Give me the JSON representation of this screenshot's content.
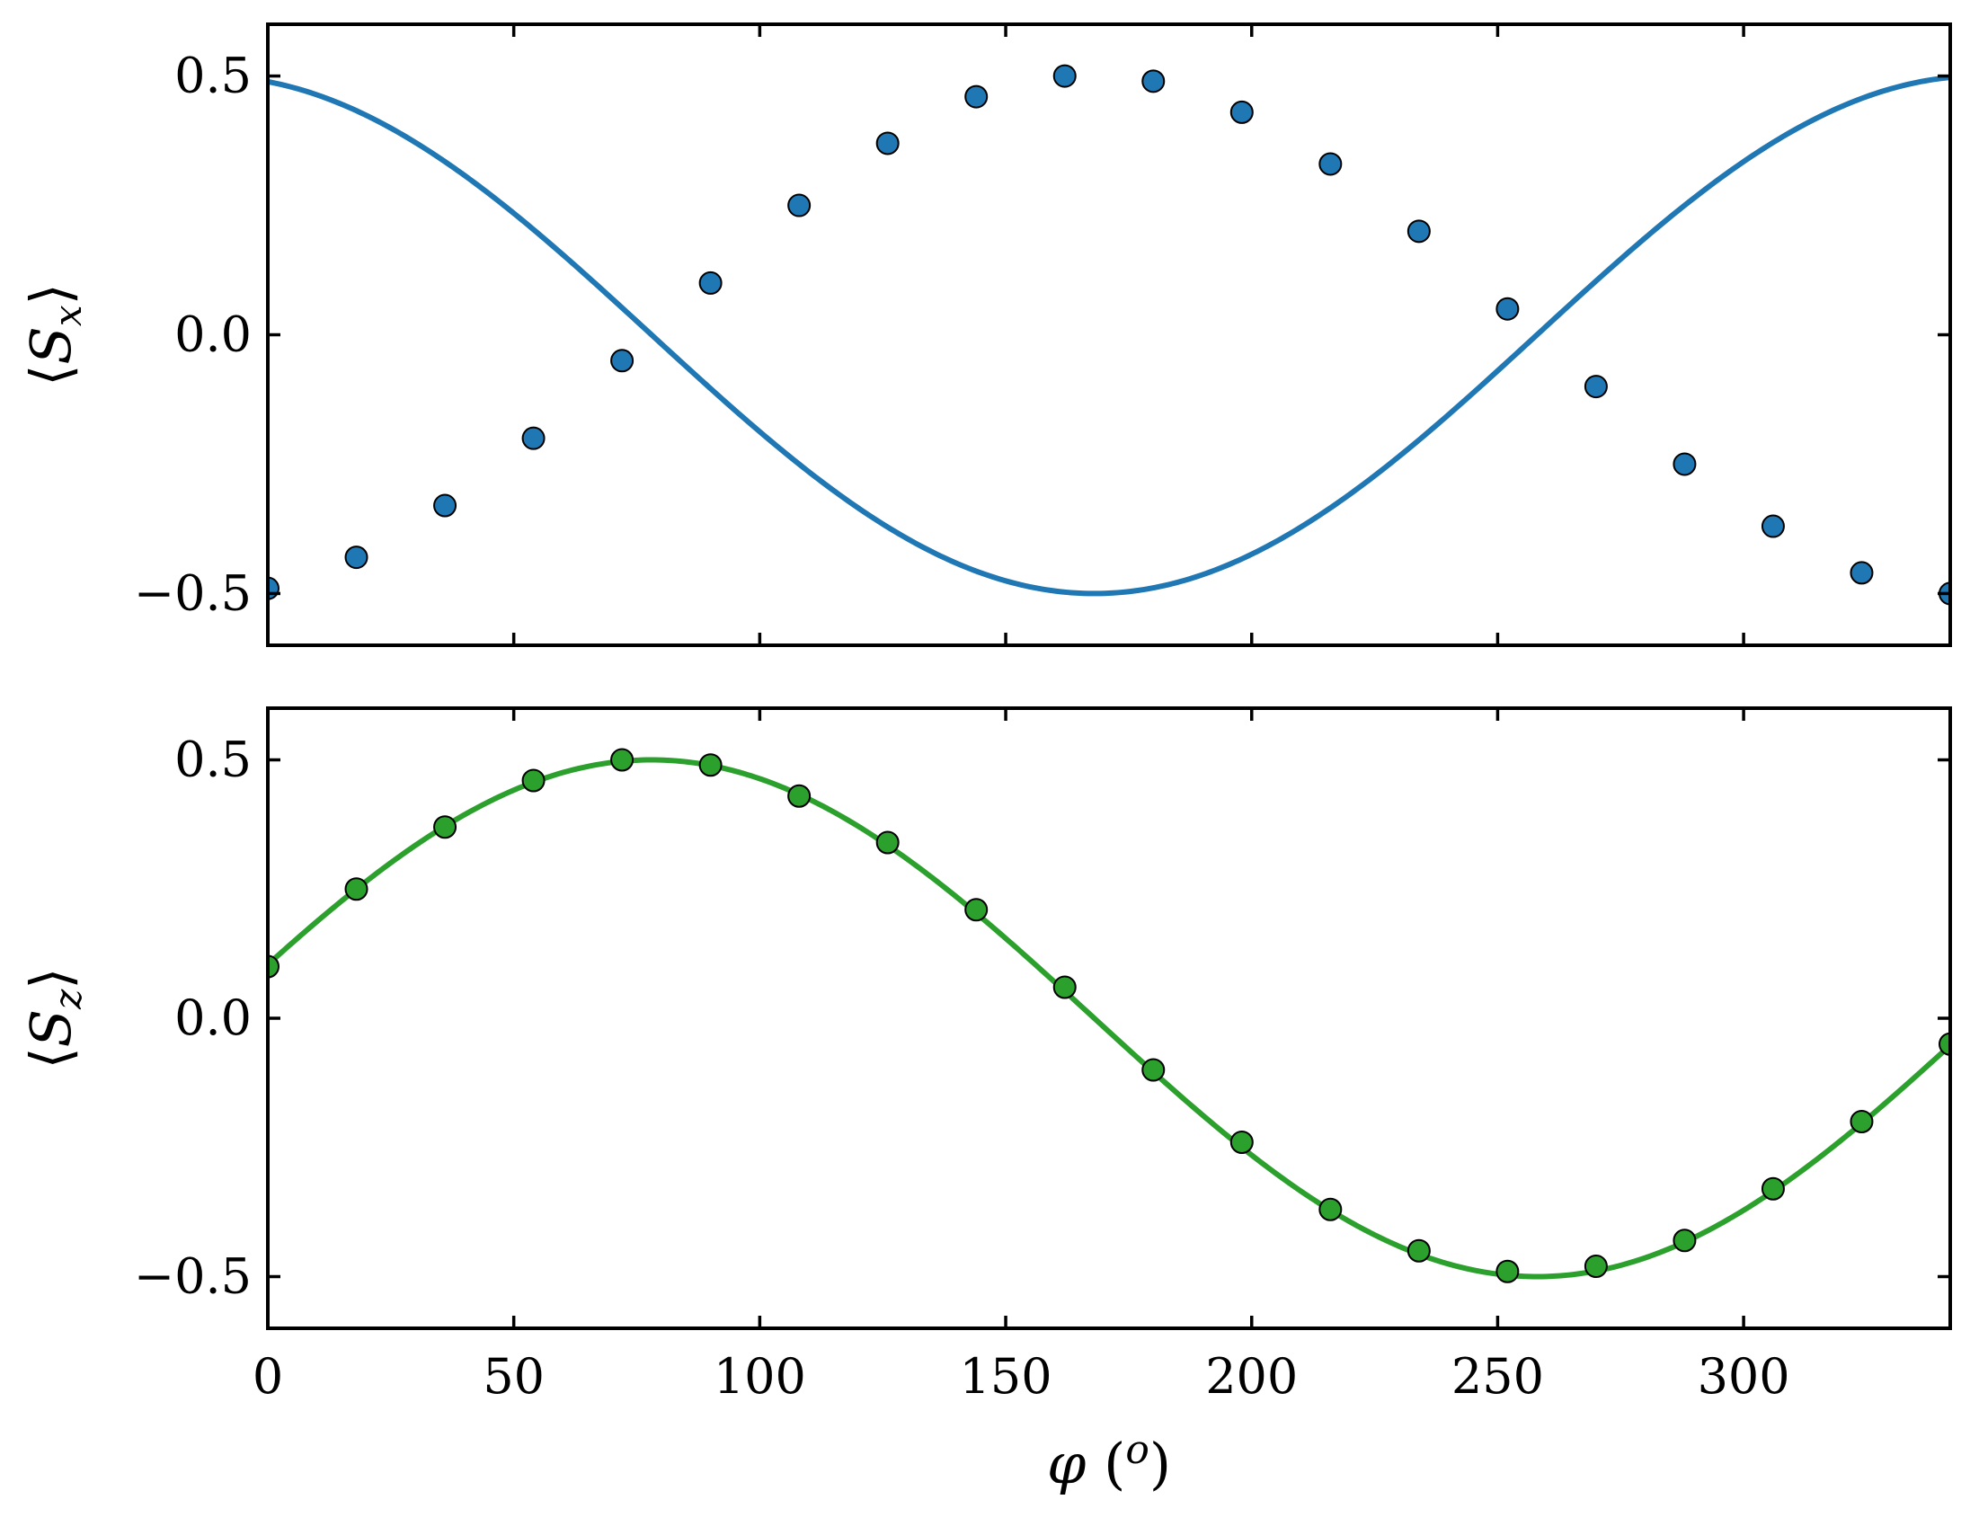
{
  "chart_data": [
    {
      "type": "line",
      "panel": "top",
      "ylabel_parts": {
        "open": "⟨",
        "var": "S",
        "sub": "x",
        "close": "⟩"
      },
      "xlim": [
        0,
        342
      ],
      "ylim": [
        -0.6,
        0.6
      ],
      "yticks": [
        -0.5,
        0.0,
        0.5
      ],
      "ytick_labels": [
        "−0.5",
        "0.0",
        "0.5"
      ],
      "xticks": [
        0,
        50,
        100,
        150,
        200,
        250,
        300
      ],
      "grid": false,
      "legend": "none",
      "color": "#1f77b4",
      "curve": {
        "model": "-0.5*cos(x - 168)"
      },
      "points": {
        "x": [
          0,
          18,
          36,
          54,
          72,
          90,
          108,
          126,
          144,
          162,
          180,
          198,
          216,
          234,
          252,
          270,
          288,
          306,
          324,
          342
        ],
        "y": [
          -0.49,
          -0.43,
          -0.33,
          -0.2,
          -0.05,
          0.1,
          0.25,
          0.37,
          0.46,
          0.5,
          0.49,
          0.43,
          0.33,
          0.2,
          0.05,
          -0.1,
          -0.25,
          -0.37,
          -0.46,
          -0.5
        ]
      }
    },
    {
      "type": "line",
      "panel": "bottom",
      "ylabel_parts": {
        "open": "⟨",
        "var": "S",
        "sub": "z",
        "close": "⟩"
      },
      "xlabel_parts": {
        "var": "φ",
        "unit": "(o)"
      },
      "xlim": [
        0,
        342
      ],
      "ylim": [
        -0.6,
        0.6
      ],
      "yticks": [
        -0.5,
        0.0,
        0.5
      ],
      "ytick_labels": [
        "−0.5",
        "0.0",
        "0.5"
      ],
      "xticks": [
        0,
        50,
        100,
        150,
        200,
        250,
        300
      ],
      "xtick_labels": [
        "0",
        "50",
        "100",
        "150",
        "200",
        "250",
        "300"
      ],
      "grid": false,
      "legend": "none",
      "color": "#2ca02c",
      "curve": {
        "model": "0.5*sin(x + 12)"
      },
      "points": {
        "x": [
          0,
          18,
          36,
          54,
          72,
          90,
          108,
          126,
          144,
          162,
          180,
          198,
          216,
          234,
          252,
          270,
          288,
          306,
          324,
          342
        ],
        "y": [
          0.1,
          0.25,
          0.37,
          0.46,
          0.5,
          0.49,
          0.43,
          0.34,
          0.21,
          0.06,
          -0.1,
          -0.24,
          -0.37,
          -0.45,
          -0.49,
          -0.48,
          -0.43,
          -0.33,
          -0.2,
          -0.05
        ]
      }
    }
  ]
}
